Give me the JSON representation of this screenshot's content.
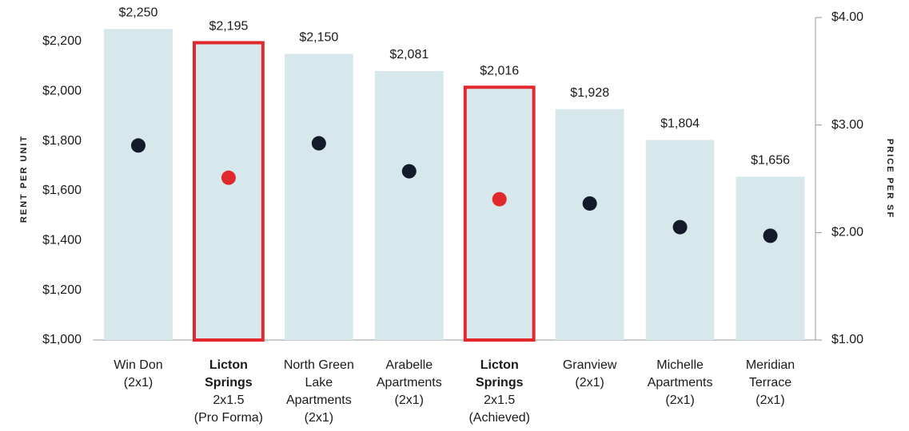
{
  "chart_data": {
    "type": "bar",
    "ylabel": "RENT PER UNIT",
    "y2label": "PRICE PER SF",
    "categories": [
      {
        "name": [
          "Win Don"
        ],
        "detail": [
          "(2x1)"
        ],
        "highlight": false
      },
      {
        "name": [
          "Licton",
          "Springs"
        ],
        "detail": [
          "2x1.5",
          "(Pro Forma)"
        ],
        "highlight": true
      },
      {
        "name": [
          "North Green",
          "Lake",
          "Apartments"
        ],
        "detail": [
          "(2x1)"
        ],
        "highlight": false
      },
      {
        "name": [
          "Arabelle",
          "Apartments"
        ],
        "detail": [
          "(2x1)"
        ],
        "highlight": false
      },
      {
        "name": [
          "Licton",
          "Springs"
        ],
        "detail": [
          "2x1.5",
          "(Achieved)"
        ],
        "highlight": true
      },
      {
        "name": [
          "Granview"
        ],
        "detail": [
          "(2x1)"
        ],
        "highlight": false
      },
      {
        "name": [
          "Michelle",
          "Apartments"
        ],
        "detail": [
          "(2x1)"
        ],
        "highlight": false
      },
      {
        "name": [
          "Meridian",
          "Terrace"
        ],
        "detail": [
          "(2x1)"
        ],
        "highlight": false
      }
    ],
    "series": [
      {
        "name": "Rent per Unit",
        "color": "#d6e8ec",
        "highlight_color": "#e0282d",
        "values": [
          2250,
          2195,
          2150,
          2081,
          2016,
          1928,
          1804,
          1656
        ],
        "value_labels": [
          "$2,250",
          "$2,195",
          "$2,150",
          "$2,081",
          "$2,016",
          "$1,928",
          "$1,804",
          "$1,656"
        ]
      },
      {
        "name": "Price per SF",
        "type": "scatter",
        "axis": "y2",
        "color": "#131b2a",
        "highlight_color": "#e0282d",
        "values": [
          2.81,
          2.51,
          2.83,
          2.57,
          2.31,
          2.27,
          2.05,
          1.97
        ]
      }
    ],
    "ylim": [
      1000,
      2296
    ],
    "yticks": [
      {
        "value": 1000,
        "label": "$1,000"
      },
      {
        "value": 1200,
        "label": "$1,200"
      },
      {
        "value": 1400,
        "label": "$1,400"
      },
      {
        "value": 1600,
        "label": "$1,600"
      },
      {
        "value": 1800,
        "label": "$1,800"
      },
      {
        "value": 2000,
        "label": "$2,000"
      },
      {
        "value": 2200,
        "label": "$2,200"
      }
    ],
    "y2lim": [
      1,
      4
    ],
    "y2ticks": [
      {
        "value": 1,
        "label": "$1.00"
      },
      {
        "value": 2,
        "label": "$2.00"
      },
      {
        "value": 3,
        "label": "$3.00"
      },
      {
        "value": 4,
        "label": "$4.00"
      }
    ]
  }
}
